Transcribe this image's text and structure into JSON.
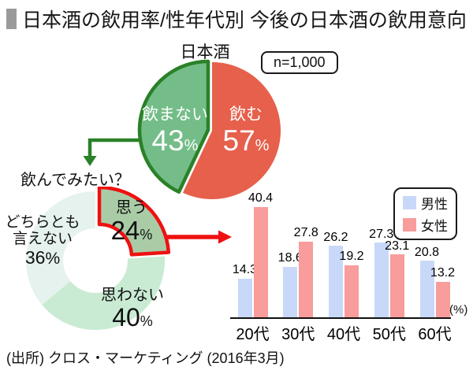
{
  "title": {
    "text": "日本酒の飲用率/性年代別 今後の日本酒の飲用意向",
    "marker_color": "#9a9a9a"
  },
  "sample_size_label": "n=1,000",
  "source": {
    "text": "(出所) クロス・マーケティング (2016年3月)"
  },
  "colors": {
    "pie_drink": "#e6604c",
    "pie_no_drink": "#74bd88",
    "pie_no_drink_border": "#2a8128",
    "donut_highlight": "#a9cca6",
    "donut_highlight_border": "#ee1111",
    "male": "#c8d8f8",
    "female": "#f89c9c"
  },
  "chart_data": [
    {
      "type": "pie",
      "title": "日本酒",
      "slices": [
        {
          "name": "飲む",
          "value": 57,
          "unit": "%",
          "color": "#e6604c"
        },
        {
          "name": "飲まない",
          "value": 43,
          "unit": "%",
          "color": "#74bd88",
          "border": "#2a8128",
          "offset": [
            -5,
            -1
          ]
        }
      ]
    },
    {
      "type": "donut",
      "title": "飲んでみたい？",
      "slices": [
        {
          "name": "思う",
          "value": 24,
          "unit": "%",
          "color": "#a9cca6",
          "border": "#ee1111",
          "offset": [
            5,
            -5
          ]
        },
        {
          "name": "思わない",
          "value": 40,
          "unit": "%",
          "color": "#c9ebd3"
        },
        {
          "name": "どちらとも言えない",
          "value": 36,
          "unit": "%",
          "color": "#e5f2ed"
        }
      ]
    },
    {
      "type": "bar",
      "categories": [
        "20代",
        "30代",
        "40代",
        "50代",
        "60代"
      ],
      "series": [
        {
          "name": "男性",
          "color": "#c8d8f8",
          "values": [
            14.3,
            18.6,
            26.2,
            27.3,
            20.8
          ]
        },
        {
          "name": "女性",
          "color": "#f89c9c",
          "values": [
            40.4,
            27.8,
            19.2,
            23.1,
            13.2
          ]
        }
      ],
      "unit_label": "(%)",
      "ylim": [
        0,
        45
      ],
      "grid": false,
      "legend_position": "top-right"
    }
  ]
}
